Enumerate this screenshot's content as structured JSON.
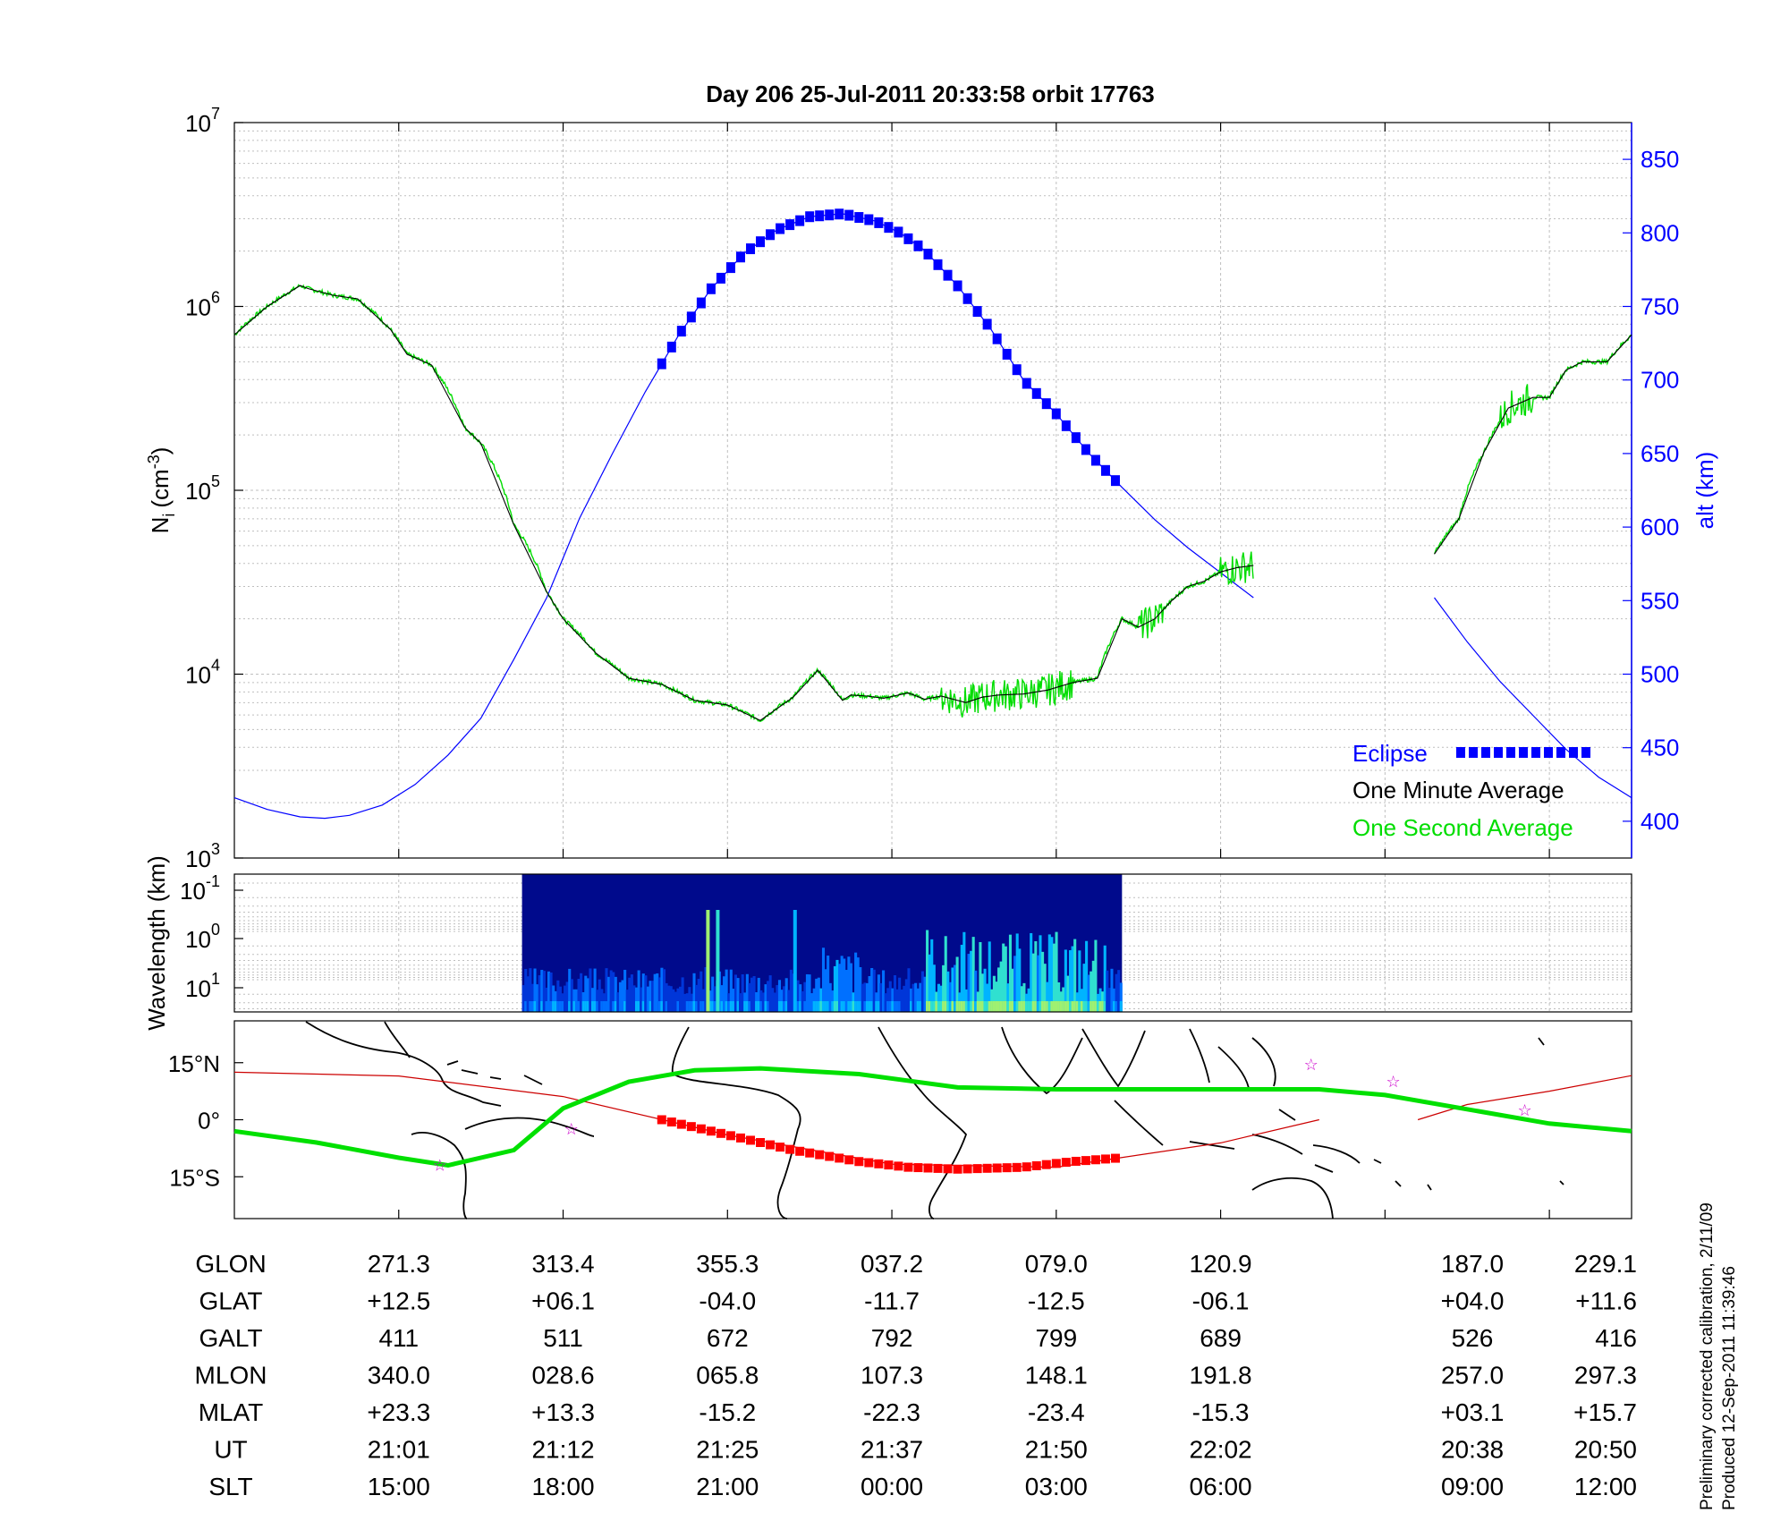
{
  "title": "Day 206  25-Jul-2011 20:33:58   orbit 17763",
  "colors": {
    "eclipse": "#0000ff",
    "one_minute": "#000000",
    "one_second": "#00dd00",
    "altitude": "#0000ff",
    "grid": "#bfbfbf",
    "track": "#cc0000",
    "eclipse_track": "#ff0000",
    "equator": "#00e000"
  },
  "legend": {
    "eclipse": "Eclipse",
    "one_minute": "One Minute Average",
    "one_second": "One Second Average"
  },
  "footnote": {
    "line1": "Preliminary corrected calibration, 2/11/09",
    "line2": "Produced 12-Sep-2011 11:39:46"
  },
  "chart_data": [
    {
      "type": "line",
      "panel": "density",
      "ylabel": "N",
      "ylabel_sub": "i",
      "ylabel_units": "(cm",
      "ylabel_sup": "-3",
      "y_log": true,
      "ylim": [
        1000,
        10000000
      ],
      "yticks": [
        {
          "base": "10",
          "exp": "3",
          "value": 1000
        },
        {
          "base": "10",
          "exp": "4",
          "value": 10000
        },
        {
          "base": "10",
          "exp": "5",
          "value": 100000
        },
        {
          "base": "10",
          "exp": "6",
          "value": 1000000
        },
        {
          "base": "10",
          "exp": "7",
          "value": 10000000
        }
      ],
      "y2label": "alt (km)",
      "y2lim": [
        375,
        875
      ],
      "y2ticks": [
        "400",
        "450",
        "500",
        "550",
        "600",
        "650",
        "700",
        "750",
        "800",
        "850"
      ],
      "xlim": [
        0,
        8.5
      ],
      "series": [
        {
          "name": "One Minute Average",
          "gap": [
            6.2,
            7.3
          ],
          "x": [
            0,
            0.2,
            0.4,
            0.45,
            0.6,
            0.75,
            0.95,
            1.05,
            1.2,
            1.4,
            1.5,
            1.7,
            1.9,
            2.0,
            2.2,
            2.4,
            2.6,
            2.8,
            3.0,
            3.2,
            3.4,
            3.55,
            3.7,
            3.75,
            3.85,
            3.95,
            4.1,
            4.2,
            4.3,
            4.45,
            4.55,
            4.65,
            4.8,
            4.95,
            5.1,
            5.25,
            5.4,
            5.5,
            5.6,
            5.7,
            5.8,
            5.9,
            6.0,
            6.1,
            6.2,
            7.3,
            7.45,
            7.6,
            7.75,
            7.9,
            8.0,
            8.1,
            8.2,
            8.35,
            8.5
          ],
          "y": [
            700000,
            1000000,
            1300000,
            1250000,
            1150000,
            1100000,
            750000,
            550000,
            480000,
            220000,
            180000,
            65000,
            28000,
            20000,
            13000,
            9500,
            8800,
            7200,
            6800,
            5600,
            7500,
            10500,
            7200,
            7700,
            7600,
            7400,
            7900,
            7300,
            7600,
            7000,
            7500,
            7700,
            7800,
            8200,
            9000,
            9500,
            20000,
            18000,
            20000,
            25000,
            30000,
            32000,
            36000,
            38000,
            39000,
            45000,
            70000,
            160000,
            280000,
            320000,
            320000,
            450000,
            500000,
            500000,
            700000
          ]
        },
        {
          "name": "One Second Average",
          "noisy_ranges": [
            [
              4.3,
              5.1
            ],
            [
              5.5,
              5.65
            ],
            [
              6.0,
              6.2
            ],
            [
              7.7,
              7.9
            ]
          ]
        },
        {
          "name": "alt (km)",
          "units": "km",
          "x": [
            0,
            0.2,
            0.4,
            0.55,
            0.7,
            0.9,
            1.1,
            1.3,
            1.5,
            1.7,
            1.9,
            2.1,
            2.3,
            2.5,
            2.7,
            2.9,
            3.1,
            3.3,
            3.5,
            3.7,
            3.9,
            4.05,
            4.2,
            4.4,
            4.6,
            4.8,
            5.0,
            5.2,
            5.4,
            5.6,
            5.8,
            6.0,
            6.2,
            7.3,
            7.5,
            7.7,
            7.9,
            8.1,
            8.3,
            8.5
          ],
          "y": [
            416,
            408,
            403,
            402,
            404,
            411,
            425,
            445,
            470,
            510,
            552,
            606,
            650,
            692,
            730,
            762,
            786,
            802,
            811,
            813,
            808,
            800,
            788,
            764,
            735,
            700,
            677,
            650,
            627,
            605,
            586,
            569,
            552,
            552,
            522,
            495,
            472,
            449,
            430,
            416
          ]
        },
        {
          "name": "Eclipse",
          "x_range": [
            2.6,
            5.4
          ]
        }
      ]
    },
    {
      "type": "heatmap",
      "panel": "spectrogram",
      "ylabel": "Wavelength (km)",
      "yticks": [
        {
          "base": "10",
          "exp": "-1"
        },
        {
          "base": "10",
          "exp": "0"
        },
        {
          "base": "10",
          "exp": "1"
        }
      ],
      "x_range": [
        1.75,
        5.4
      ],
      "xlim": [
        0,
        8.5
      ]
    },
    {
      "type": "line",
      "panel": "map",
      "yticks": [
        "15°N",
        "0°",
        "15°S"
      ],
      "ylim": [
        -26,
        26
      ],
      "xlim": [
        0,
        8.5
      ],
      "series": [
        {
          "name": "ground-track",
          "x": [
            0,
            1.0,
            2.0,
            3.0,
            4.0,
            5.0,
            6.0,
            6.6
          ],
          "y": [
            12.5,
            11.5,
            6.1,
            -4.0,
            -11.7,
            -12.5,
            -6.1,
            0.0
          ]
        },
        {
          "name": "ground-track-2",
          "x": [
            7.2,
            7.5,
            8.0,
            8.5
          ],
          "y": [
            0.0,
            4.0,
            7.5,
            11.6
          ]
        },
        {
          "name": "magnetic-equator",
          "x": [
            0,
            0.5,
            1.0,
            1.3,
            1.7,
            2.0,
            2.4,
            2.8,
            3.2,
            3.8,
            4.4,
            5.0,
            5.6,
            6.2,
            6.6,
            7.0,
            7.6,
            8.0,
            8.5
          ],
          "y": [
            -3.0,
            -6.0,
            -10.0,
            -12.0,
            -8.0,
            3.0,
            10.0,
            13.0,
            13.5,
            12.0,
            8.5,
            8.0,
            8.0,
            8.0,
            8.0,
            6.5,
            2.0,
            -1.0,
            -3.0
          ]
        },
        {
          "name": "eclipse-track",
          "x": [
            2.6,
            3.0,
            3.4,
            3.8,
            4.1,
            4.4,
            4.8,
            5.1,
            5.4
          ],
          "y": [
            0.0,
            -4.0,
            -8.0,
            -11.0,
            -12.5,
            -13.0,
            -12.5,
            -11.0,
            -10.0
          ]
        }
      ],
      "markers": [
        {
          "x": 1.25,
          "y": -12.0
        },
        {
          "x": 2.05,
          "y": -2.5
        },
        {
          "x": 6.55,
          "y": 14.5
        },
        {
          "x": 7.05,
          "y": 10.0
        },
        {
          "x": 7.85,
          "y": 2.5
        }
      ]
    }
  ],
  "table": {
    "rows": [
      {
        "label": "GLON",
        "values": [
          "271.3",
          "313.4",
          "355.3",
          "037.2",
          "079.0",
          "120.9",
          "187.0",
          "229.1"
        ]
      },
      {
        "label": "GLAT",
        "values": [
          "+12.5",
          "+06.1",
          "-04.0",
          "-11.7",
          "-12.5",
          "-06.1",
          "+04.0",
          "+11.6"
        ]
      },
      {
        "label": "GALT",
        "values": [
          "411",
          "511",
          "672",
          "792",
          "799",
          "689",
          "526",
          "416"
        ]
      },
      {
        "label": "MLON",
        "values": [
          "340.0",
          "028.6",
          "065.8",
          "107.3",
          "148.1",
          "191.8",
          "257.0",
          "297.3"
        ]
      },
      {
        "label": "MLAT",
        "values": [
          "+23.3",
          "+13.3",
          "-15.2",
          "-22.3",
          "-23.4",
          "-15.3",
          "+03.1",
          "+15.7"
        ]
      },
      {
        "label": "UT",
        "values": [
          "21:01",
          "21:12",
          "21:25",
          "21:37",
          "21:50",
          "22:02",
          "20:38",
          "20:50"
        ]
      },
      {
        "label": "SLT",
        "values": [
          "15:00",
          "18:00",
          "21:00",
          "00:00",
          "03:00",
          "06:00",
          "09:00",
          "12:00"
        ]
      }
    ]
  }
}
